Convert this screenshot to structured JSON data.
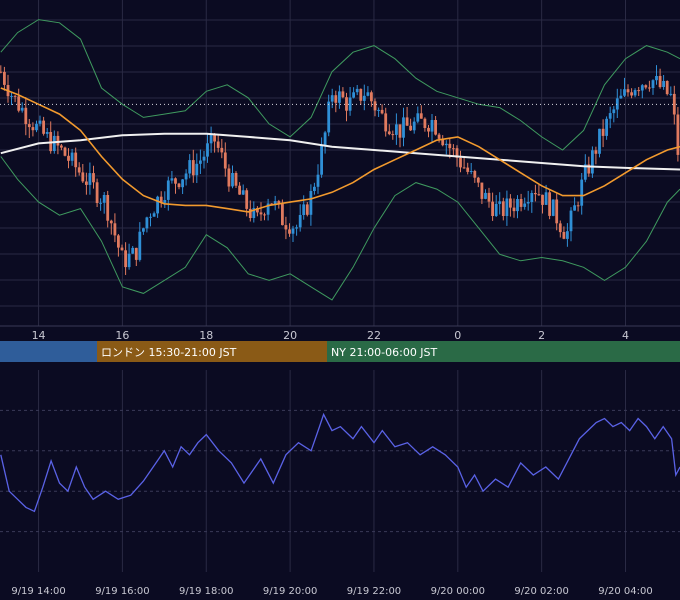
{
  "colors": {
    "background": "#0b0b22",
    "grid": "#2a2a44",
    "bull": "#2f8fd6",
    "bear": "#e07a5f",
    "sma_long": "#f0f0f0",
    "sma_mid": "#f29a2e",
    "bollinger": "#3f9a5f",
    "oscillator": "#5a62e6",
    "session_tokyo": "#2f5d9a",
    "session_london": "#8a5a16",
    "session_ny": "#2a6a46"
  },
  "sessions": [
    {
      "id": "tokyo",
      "label": ""
    },
    {
      "id": "london",
      "label": "ロンドン 15:30-21:00 JST"
    },
    {
      "id": "ny",
      "label": "NY 21:00-06:00 JST"
    }
  ],
  "chart_data": [
    {
      "type": "candlestick",
      "x_ticks": [
        "14",
        "16",
        "18",
        "20",
        "22",
        "0",
        "2",
        "4"
      ],
      "x_tick_hours": [
        14,
        16,
        18,
        20,
        22,
        24,
        26,
        28
      ],
      "x_range_hours": [
        13.08,
        29.3
      ],
      "ylim": [
        0,
        100
      ],
      "reference_line": 68,
      "grid": true,
      "series": [
        {
          "id": "close_path",
          "values": [
            [
              13.1,
              78
            ],
            [
              13.4,
              70
            ],
            [
              14,
              60
            ],
            [
              14.6,
              53
            ],
            [
              15.2,
              44
            ],
            [
              15.6,
              38
            ],
            [
              16.0,
              20
            ],
            [
              16.3,
              22
            ],
            [
              16.6,
              34
            ],
            [
              17,
              42
            ],
            [
              17.4,
              46
            ],
            [
              17.8,
              50
            ],
            [
              18.2,
              57
            ],
            [
              18.6,
              44
            ],
            [
              18.9,
              38
            ],
            [
              19.2,
              32
            ],
            [
              19.5,
              40
            ],
            [
              19.8,
              33
            ],
            [
              20.2,
              30
            ],
            [
              20.5,
              40
            ],
            [
              20.8,
              56
            ],
            [
              21.0,
              72
            ],
            [
              21.4,
              68
            ],
            [
              21.8,
              72
            ],
            [
              22.2,
              64
            ],
            [
              22.6,
              60
            ],
            [
              23,
              62
            ],
            [
              23.4,
              63
            ],
            [
              23.8,
              55
            ],
            [
              24.2,
              48
            ],
            [
              24.6,
              40
            ],
            [
              25,
              35
            ],
            [
              25.4,
              38
            ],
            [
              25.8,
              43
            ],
            [
              26.2,
              37
            ],
            [
              26.6,
              28
            ],
            [
              27,
              45
            ],
            [
              27.4,
              58
            ],
            [
              27.8,
              68
            ],
            [
              28.2,
              74
            ],
            [
              28.6,
              76
            ],
            [
              29.1,
              70
            ],
            [
              29.3,
              48
            ]
          ]
        },
        {
          "id": "sma_long",
          "values": [
            [
              13.1,
              53
            ],
            [
              14,
              56
            ],
            [
              15,
              57
            ],
            [
              16,
              58.5
            ],
            [
              17,
              59
            ],
            [
              18,
              59
            ],
            [
              19,
              58
            ],
            [
              20,
              57
            ],
            [
              21,
              55
            ],
            [
              22,
              54
            ],
            [
              23,
              53
            ],
            [
              24,
              52
            ],
            [
              25,
              51
            ],
            [
              26,
              50
            ],
            [
              27,
              49
            ],
            [
              28,
              48.5
            ],
            [
              29.3,
              48
            ]
          ]
        },
        {
          "id": "sma_mid",
          "values": [
            [
              13.1,
              73
            ],
            [
              13.5,
              71
            ],
            [
              14,
              68
            ],
            [
              14.5,
              65
            ],
            [
              15,
              60
            ],
            [
              15.5,
              52
            ],
            [
              16,
              45
            ],
            [
              16.5,
              40
            ],
            [
              17,
              37.5
            ],
            [
              17.5,
              37
            ],
            [
              18,
              37
            ],
            [
              18.5,
              36
            ],
            [
              19,
              35
            ],
            [
              19.5,
              37
            ],
            [
              20,
              38
            ],
            [
              20.5,
              39
            ],
            [
              21,
              41
            ],
            [
              21.5,
              44
            ],
            [
              22,
              48
            ],
            [
              22.5,
              51
            ],
            [
              23,
              54
            ],
            [
              23.5,
              57
            ],
            [
              24,
              58
            ],
            [
              24.5,
              55
            ],
            [
              25,
              51
            ],
            [
              25.5,
              47
            ],
            [
              26,
              43
            ],
            [
              26.5,
              40
            ],
            [
              27,
              40
            ],
            [
              27.5,
              43
            ],
            [
              28,
              47
            ],
            [
              28.5,
              51
            ],
            [
              29,
              54
            ],
            [
              29.3,
              55
            ]
          ]
        },
        {
          "id": "bb_upper",
          "values": [
            [
              13.1,
              84
            ],
            [
              13.5,
              90
            ],
            [
              14,
              94
            ],
            [
              14.5,
              93
            ],
            [
              15,
              88
            ],
            [
              15.5,
              73
            ],
            [
              16,
              68
            ],
            [
              16.5,
              64
            ],
            [
              17,
              65
            ],
            [
              17.5,
              66
            ],
            [
              18,
              72
            ],
            [
              18.5,
              74
            ],
            [
              19,
              70
            ],
            [
              19.5,
              62
            ],
            [
              20,
              58
            ],
            [
              20.5,
              64
            ],
            [
              21,
              78
            ],
            [
              21.5,
              84
            ],
            [
              22,
              86
            ],
            [
              22.5,
              82
            ],
            [
              23,
              76
            ],
            [
              23.5,
              72
            ],
            [
              24,
              70
            ],
            [
              24.5,
              68
            ],
            [
              25,
              67
            ],
            [
              25.5,
              63
            ],
            [
              26,
              58
            ],
            [
              26.5,
              54
            ],
            [
              27,
              60
            ],
            [
              27.5,
              74
            ],
            [
              28,
              82
            ],
            [
              28.5,
              86
            ],
            [
              29,
              84
            ],
            [
              29.3,
              82
            ]
          ]
        },
        {
          "id": "bb_lower",
          "values": [
            [
              13.1,
              52
            ],
            [
              13.5,
              45
            ],
            [
              14,
              38
            ],
            [
              14.5,
              34
            ],
            [
              15,
              36
            ],
            [
              15.5,
              26
            ],
            [
              16,
              12
            ],
            [
              16.5,
              10
            ],
            [
              17,
              14
            ],
            [
              17.5,
              18
            ],
            [
              18,
              28
            ],
            [
              18.5,
              24
            ],
            [
              19,
              16
            ],
            [
              19.5,
              14
            ],
            [
              20,
              16
            ],
            [
              20.5,
              12
            ],
            [
              21,
              8
            ],
            [
              21.5,
              18
            ],
            [
              22,
              30
            ],
            [
              22.5,
              40
            ],
            [
              23,
              44
            ],
            [
              23.5,
              42
            ],
            [
              24,
              38
            ],
            [
              24.5,
              30
            ],
            [
              25,
              22
            ],
            [
              25.5,
              20
            ],
            [
              26,
              21
            ],
            [
              26.5,
              20
            ],
            [
              27,
              18
            ],
            [
              27.5,
              14
            ],
            [
              28,
              18
            ],
            [
              28.5,
              26
            ],
            [
              29,
              38
            ],
            [
              29.3,
              42
            ]
          ]
        }
      ]
    },
    {
      "type": "line",
      "x_ticks": [
        "9/19 14:00",
        "9/19 16:00",
        "9/19 18:00",
        "9/19 20:00",
        "9/19 22:00",
        "9/20 00:00",
        "9/20 02:00",
        "9/20 04:00"
      ],
      "x_tick_hours": [
        14,
        16,
        18,
        20,
        22,
        24,
        26,
        28
      ],
      "x_range_hours": [
        13.08,
        29.3
      ],
      "ylim": [
        0,
        100
      ],
      "dashed_levels": [
        20,
        40,
        60,
        80
      ],
      "series": [
        {
          "id": "oscillator",
          "values": [
            [
              13.1,
              58
            ],
            [
              13.3,
              40
            ],
            [
              13.5,
              36
            ],
            [
              13.7,
              32
            ],
            [
              13.9,
              30
            ],
            [
              14.1,
              42
            ],
            [
              14.3,
              55
            ],
            [
              14.5,
              44
            ],
            [
              14.7,
              40
            ],
            [
              14.9,
              52
            ],
            [
              15.1,
              42
            ],
            [
              15.3,
              36
            ],
            [
              15.6,
              40
            ],
            [
              15.9,
              36
            ],
            [
              16.2,
              38
            ],
            [
              16.5,
              45
            ],
            [
              16.8,
              54
            ],
            [
              17.0,
              60
            ],
            [
              17.2,
              52
            ],
            [
              17.4,
              62
            ],
            [
              17.6,
              58
            ],
            [
              17.8,
              64
            ],
            [
              18.0,
              68
            ],
            [
              18.3,
              60
            ],
            [
              18.6,
              54
            ],
            [
              18.9,
              44
            ],
            [
              19.1,
              50
            ],
            [
              19.3,
              56
            ],
            [
              19.6,
              44
            ],
            [
              19.9,
              58
            ],
            [
              20.2,
              64
            ],
            [
              20.5,
              60
            ],
            [
              20.7,
              72
            ],
            [
              20.8,
              78
            ],
            [
              21.0,
              70
            ],
            [
              21.2,
              72
            ],
            [
              21.5,
              66
            ],
            [
              21.7,
              72
            ],
            [
              22.0,
              64
            ],
            [
              22.2,
              70
            ],
            [
              22.5,
              62
            ],
            [
              22.8,
              64
            ],
            [
              23.1,
              58
            ],
            [
              23.4,
              62
            ],
            [
              23.7,
              58
            ],
            [
              24.0,
              52
            ],
            [
              24.2,
              42
            ],
            [
              24.4,
              48
            ],
            [
              24.6,
              40
            ],
            [
              24.9,
              46
            ],
            [
              25.2,
              42
            ],
            [
              25.5,
              54
            ],
            [
              25.8,
              48
            ],
            [
              26.1,
              52
            ],
            [
              26.4,
              46
            ],
            [
              26.7,
              58
            ],
            [
              26.9,
              66
            ],
            [
              27.1,
              70
            ],
            [
              27.3,
              74
            ],
            [
              27.5,
              76
            ],
            [
              27.7,
              72
            ],
            [
              27.9,
              74
            ],
            [
              28.1,
              70
            ],
            [
              28.3,
              76
            ],
            [
              28.5,
              72
            ],
            [
              28.7,
              66
            ],
            [
              28.9,
              72
            ],
            [
              29.1,
              66
            ],
            [
              29.2,
              48
            ],
            [
              29.3,
              52
            ]
          ]
        }
      ]
    }
  ]
}
